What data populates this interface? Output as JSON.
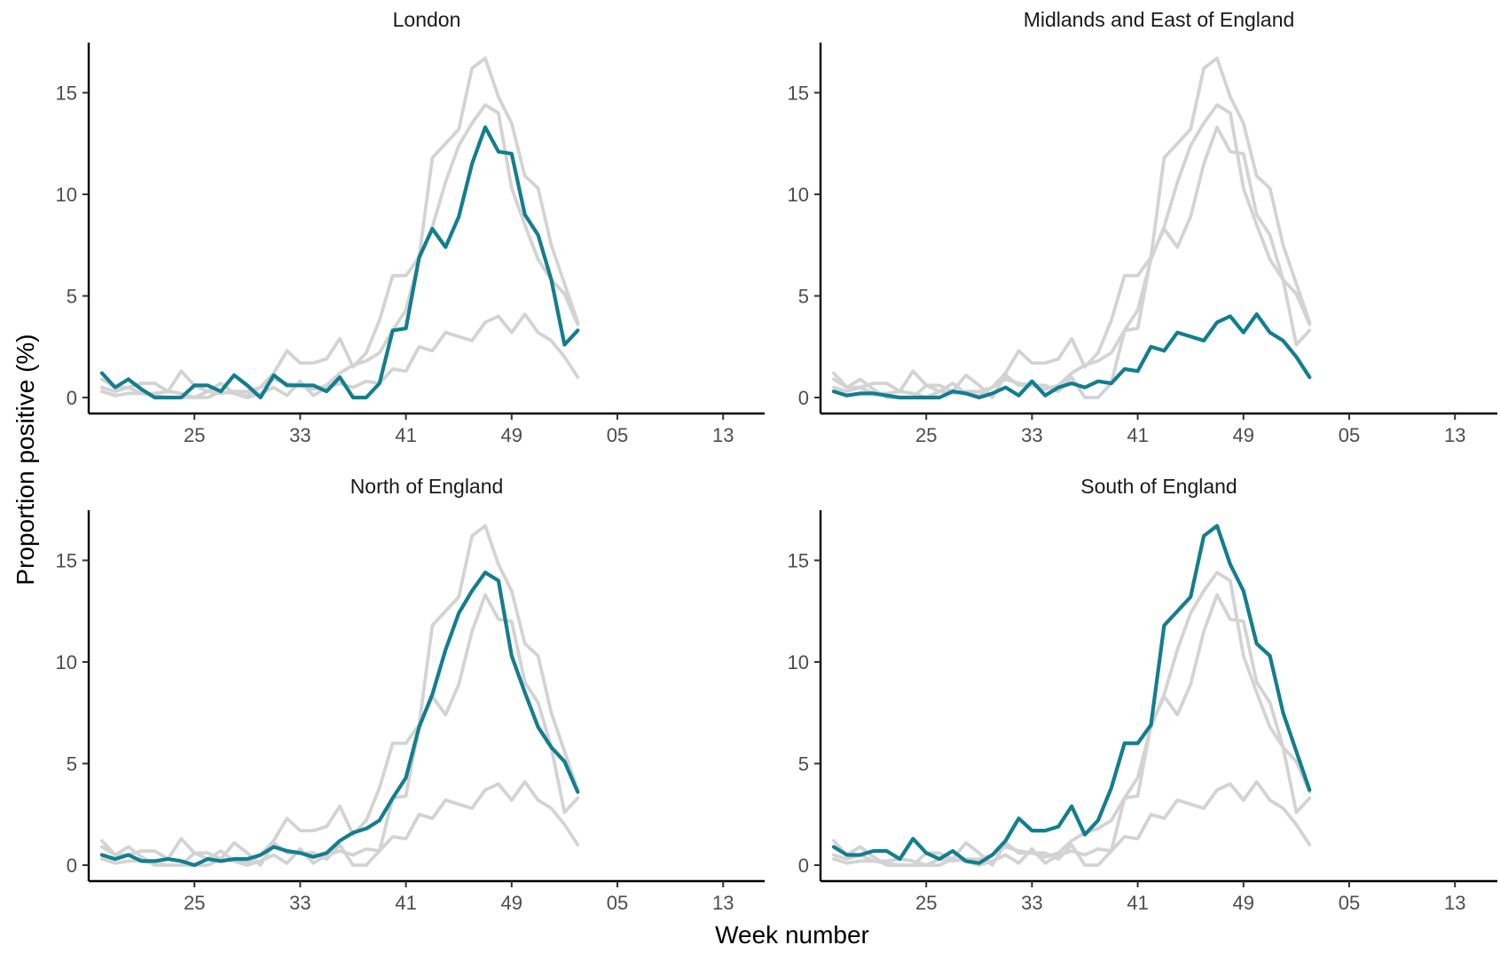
{
  "chart_data": {
    "type": "line",
    "xlabel": "Week number",
    "ylabel": "Proportion positive (%)",
    "x_ticks": [
      "25",
      "33",
      "41",
      "49",
      "05",
      "13"
    ],
    "y_ticks": [
      "0",
      "5",
      "10",
      "15"
    ],
    "ylim": [
      0,
      17.5
    ],
    "x": [
      18,
      19,
      20,
      21,
      22,
      23,
      24,
      25,
      26,
      27,
      28,
      29,
      30,
      31,
      32,
      33,
      34,
      35,
      36,
      37,
      38,
      39,
      40,
      41,
      42,
      43,
      44,
      45,
      46,
      47,
      48,
      49,
      50,
      51,
      52,
      53,
      54,
      55
    ],
    "highlight_color": "#127E8F",
    "background_color": "#D3D3D3",
    "grid": false,
    "legend": "none",
    "panels": [
      {
        "title": "London",
        "series": [
          {
            "values": [
              1.2,
              0.5,
              0.9,
              0.4,
              0.0,
              0.0,
              0.0,
              0.6,
              0.6,
              0.3,
              1.1,
              0.6,
              0.0,
              1.1,
              0.6,
              0.6,
              0.6,
              0.3,
              1.0,
              0.0,
              0.0,
              0.7,
              3.3,
              3.4,
              6.9,
              8.3,
              7.4,
              8.9,
              11.5,
              13.3,
              12.1,
              12.0,
              9.0,
              8.0,
              5.8,
              2.6,
              3.3,
              null
            ]
          }
        ]
      },
      {
        "title": "Midlands and East of England",
        "series": [
          {
            "values": [
              0.3,
              0.1,
              0.2,
              0.2,
              0.1,
              0.0,
              0.0,
              0.0,
              0.0,
              0.3,
              0.2,
              0.0,
              0.2,
              0.5,
              0.1,
              0.8,
              0.1,
              0.5,
              0.7,
              0.5,
              0.8,
              0.7,
              1.4,
              1.3,
              2.5,
              2.3,
              3.2,
              3.0,
              2.8,
              3.7,
              4.0,
              3.2,
              4.1,
              3.2,
              2.8,
              2.0,
              1.0,
              null
            ]
          }
        ]
      },
      {
        "title": "North of England",
        "series": [
          {
            "values": [
              0.5,
              0.3,
              0.5,
              0.2,
              0.2,
              0.3,
              0.2,
              0.0,
              0.3,
              0.2,
              0.3,
              0.3,
              0.5,
              0.9,
              0.7,
              0.6,
              0.4,
              0.6,
              1.2,
              1.6,
              1.8,
              2.2,
              3.3,
              4.3,
              6.8,
              8.4,
              10.6,
              12.4,
              13.5,
              14.4,
              14.0,
              10.3,
              8.5,
              6.8,
              5.8,
              5.1,
              3.6,
              null
            ]
          }
        ]
      },
      {
        "title": "South of England",
        "series": [
          {
            "values": [
              0.9,
              0.5,
              0.5,
              0.7,
              0.7,
              0.3,
              1.3,
              0.6,
              0.3,
              0.7,
              0.2,
              0.1,
              0.5,
              1.2,
              2.3,
              1.7,
              1.7,
              1.9,
              2.9,
              1.5,
              2.2,
              3.8,
              6.0,
              6.0,
              6.9,
              11.8,
              12.5,
              13.2,
              16.2,
              16.7,
              14.8,
              13.5,
              10.9,
              10.3,
              7.5,
              5.6,
              3.7,
              null
            ]
          }
        ]
      }
    ]
  }
}
